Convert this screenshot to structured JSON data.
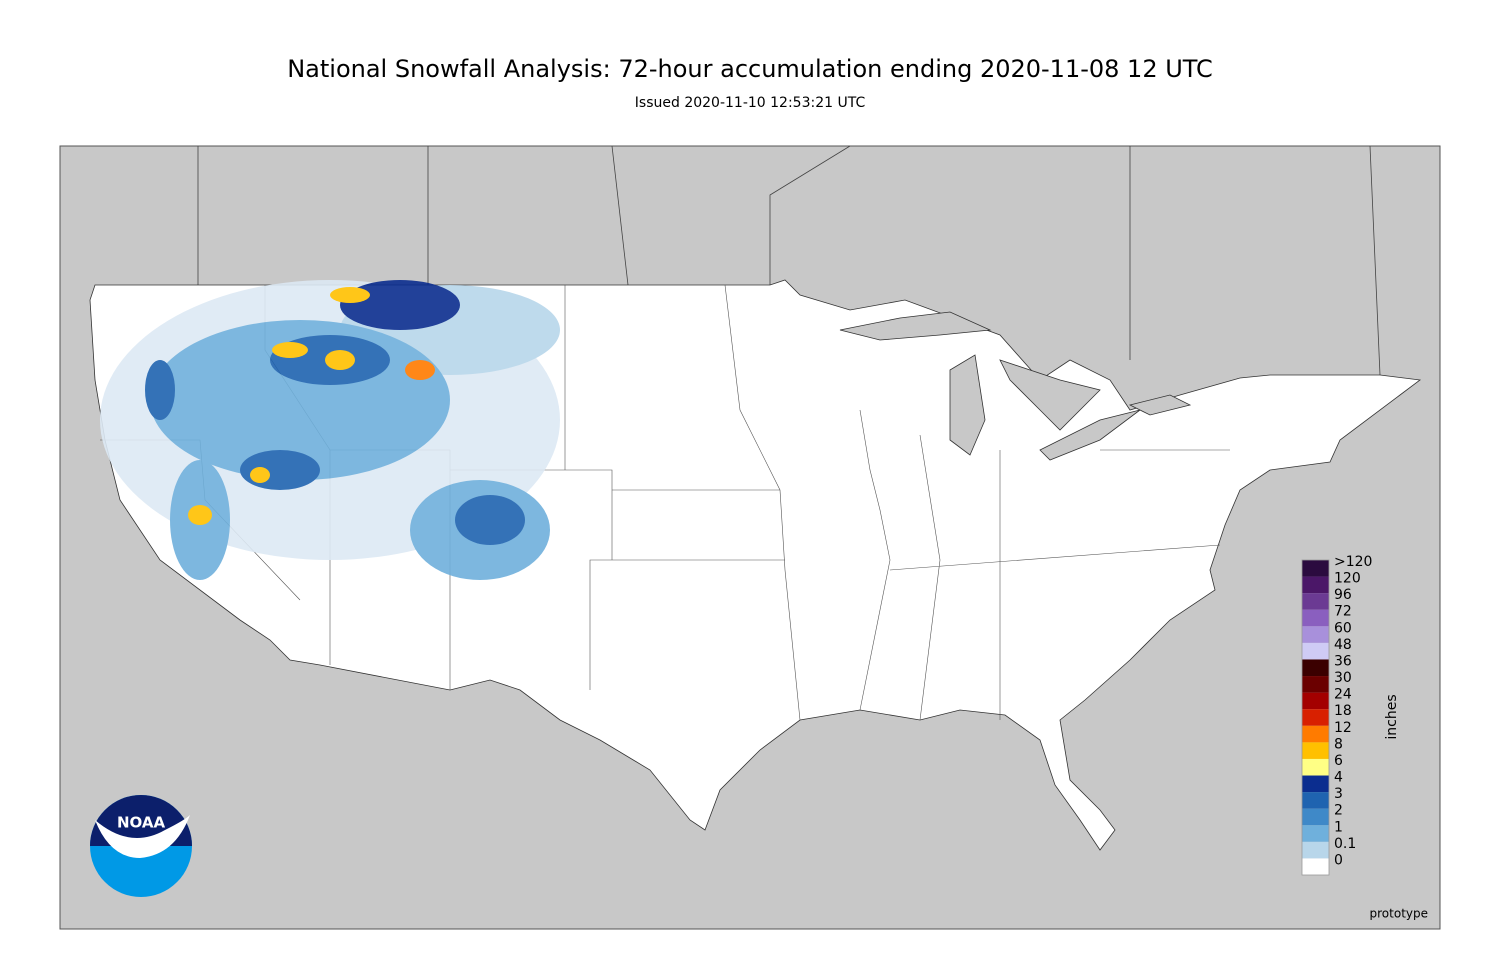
{
  "header": {
    "title": "National Snowfall Analysis: 72-hour accumulation ending 2020-11-08 12 UTC",
    "subtitle": "Issued 2020-11-10 12:53:21 UTC"
  },
  "legend": {
    "unit": "inches",
    "entries": [
      {
        "label": ">120",
        "color": "#2b0b3f"
      },
      {
        "label": "120",
        "color": "#4b1768"
      },
      {
        "label": "96",
        "color": "#6b3a93"
      },
      {
        "label": "72",
        "color": "#8a5fbf"
      },
      {
        "label": "60",
        "color": "#a890db"
      },
      {
        "label": "48",
        "color": "#cfcbf5"
      },
      {
        "label": "36",
        "color": "#3b0000"
      },
      {
        "label": "30",
        "color": "#6b0000"
      },
      {
        "label": "24",
        "color": "#a30000"
      },
      {
        "label": "18",
        "color": "#d82000"
      },
      {
        "label": "12",
        "color": "#ff7b00"
      },
      {
        "label": "8",
        "color": "#ffc000"
      },
      {
        "label": "6",
        "color": "#ffff85"
      },
      {
        "label": "4",
        "color": "#0b2d8f"
      },
      {
        "label": "3",
        "color": "#1f63b0"
      },
      {
        "label": "2",
        "color": "#3f89c8"
      },
      {
        "label": "1",
        "color": "#6fb0dc"
      },
      {
        "label": "0.1",
        "color": "#b8d6ea"
      },
      {
        "label": "0",
        "color": "#ffffff"
      }
    ]
  },
  "logo": "NOAA",
  "note": "prototype"
}
